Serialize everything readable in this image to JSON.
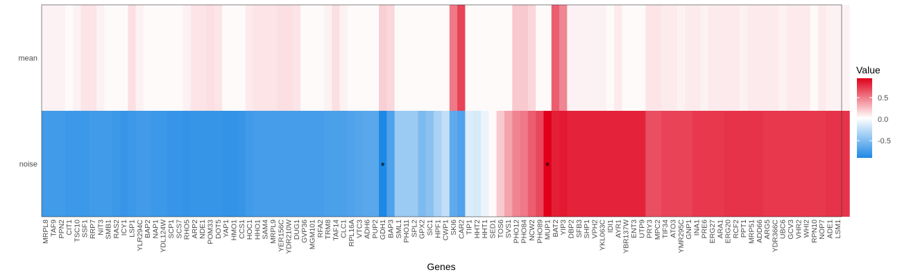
{
  "chart_data": {
    "type": "heatmap",
    "xlabel": "Genes",
    "ylabel": "",
    "rows": [
      "mean",
      "noise"
    ],
    "genes": [
      "MRPL8",
      "TAF9",
      "PPN2",
      "CIT1",
      "TSC10",
      "SSF1",
      "RRP7",
      "NIT3",
      "SMB1",
      "RAS2",
      "ICY1",
      "LSP1",
      "YLR294C",
      "BAP2",
      "NAP1",
      "YDL124W",
      "SCP1",
      "SCS7",
      "RHO5",
      "ARP2",
      "NDE1",
      "POM33",
      "DOT5",
      "YAP1",
      "HMO1",
      "CCS1",
      "HOC1",
      "HHO1",
      "SAM4",
      "MRPL9",
      "YER156C",
      "YDR210W",
      "DUG1",
      "GVP36",
      "MGM101",
      "RFA2",
      "TRM8",
      "TAF14",
      "CLC1",
      "RPL16A",
      "VTC3",
      "ADH6",
      "PUP2",
      "GDH1",
      "BAP3",
      "SML1",
      "PHO11",
      "SPL2",
      "GPX2",
      "SIC1",
      "HPF1",
      "CWP1",
      "SKI6",
      "CAR2",
      "TIP1",
      "HHT2",
      "HHT1",
      "SED1",
      "TOS6",
      "SVS1",
      "PHO12",
      "PHO84",
      "NCW2",
      "PHO89",
      "MUP1",
      "BAT2",
      "YIP3",
      "DBP2",
      "SFB3",
      "SHP1",
      "VPH2",
      "YKL063C",
      "IDI1",
      "AYR1",
      "YBR137W",
      "ENT3",
      "UTP9",
      "PRY3",
      "MPC2",
      "TIF34",
      "ATO3",
      "YMR295C",
      "GNP1",
      "INA1",
      "PRE6",
      "ERG27",
      "ARA1",
      "ERG20",
      "RCF2",
      "PPT1",
      "MRP51",
      "ADD66",
      "ARG5",
      "YDR366C",
      "UBC6",
      "GCV3",
      "VHR2",
      "WHI2",
      "RPN10",
      "NOP7",
      "ADE1",
      "LSM1"
    ],
    "mean": [
      0.05,
      0.05,
      0.05,
      0.02,
      0.05,
      0.1,
      0.1,
      0.05,
      0.02,
      0.02,
      0.02,
      0.12,
      0.05,
      0.02,
      0.02,
      0.02,
      0.02,
      0.02,
      0.05,
      0.1,
      0.1,
      0.12,
      0.1,
      0.02,
      0.02,
      0.02,
      0.08,
      0.1,
      0.1,
      0.1,
      0.12,
      0.12,
      0.1,
      0.02,
      0.02,
      0.02,
      0.05,
      0.12,
      0.05,
      0.02,
      0.02,
      0.02,
      0.02,
      0.18,
      0.15,
      0.02,
      0.02,
      0.02,
      0.02,
      0.02,
      0.02,
      0.02,
      0.5,
      0.7,
      0.02,
      0.02,
      0.02,
      0.02,
      0.02,
      0.02,
      0.2,
      0.2,
      0.15,
      0.02,
      0.02,
      0.6,
      0.45,
      0.05,
      0.05,
      0.05,
      0.05,
      0.05,
      0.02,
      0.08,
      0.02,
      0.02,
      0.02,
      0.1,
      0.1,
      0.08,
      0.08,
      0.05,
      0.08,
      0.08,
      0.05,
      0.08,
      0.08,
      0.08,
      0.08,
      0.05,
      0.08,
      0.08,
      0.08,
      0.08,
      0.05,
      0.08,
      0.08,
      0.08,
      0.02,
      0.08,
      0.05,
      0.05,
      0.05
    ],
    "noise": [
      -0.76,
      -0.76,
      -0.76,
      -0.78,
      -0.78,
      -0.78,
      -0.76,
      -0.76,
      -0.76,
      -0.78,
      -0.8,
      -0.78,
      -0.76,
      -0.76,
      -0.78,
      -0.78,
      -0.8,
      -0.8,
      -0.82,
      -0.8,
      -0.8,
      -0.8,
      -0.8,
      -0.82,
      -0.82,
      -0.8,
      -0.76,
      -0.74,
      -0.74,
      -0.74,
      -0.74,
      -0.74,
      -0.74,
      -0.74,
      -0.74,
      -0.74,
      -0.72,
      -0.72,
      -0.72,
      -0.7,
      -0.68,
      -0.66,
      -0.66,
      -0.9,
      -0.7,
      -0.4,
      -0.4,
      -0.4,
      -0.52,
      -0.46,
      -0.34,
      -0.24,
      -0.64,
      -0.7,
      -0.14,
      -0.16,
      -0.08,
      0.02,
      0.2,
      0.34,
      0.46,
      0.5,
      0.6,
      0.68,
      0.95,
      0.84,
      0.86,
      0.82,
      0.82,
      0.82,
      0.82,
      0.82,
      0.82,
      0.82,
      0.82,
      0.82,
      0.82,
      0.66,
      0.66,
      0.7,
      0.7,
      0.7,
      0.7,
      0.74,
      0.74,
      0.74,
      0.74,
      0.76,
      0.76,
      0.76,
      0.76,
      0.76,
      0.74,
      0.74,
      0.74,
      0.74,
      0.74,
      0.74,
      0.74,
      0.74,
      0.76,
      0.76,
      0.76
    ],
    "significant": [
      {
        "row": "noise",
        "gene": "GDH1",
        "label": "*"
      },
      {
        "row": "noise",
        "gene": "MUP1",
        "label": "*"
      }
    ],
    "colorscale": {
      "low": "#1e88e5",
      "mid": "#ffffff",
      "high": "#e0001b",
      "limits": [
        -0.9,
        0.95
      ]
    },
    "legend": {
      "title": "Value",
      "position": "right",
      "ticks": [
        {
          "value": 0.5,
          "label": "0.5"
        },
        {
          "value": 0.0,
          "label": "0.0"
        },
        {
          "value": -0.5,
          "label": "-0.5"
        }
      ]
    }
  }
}
